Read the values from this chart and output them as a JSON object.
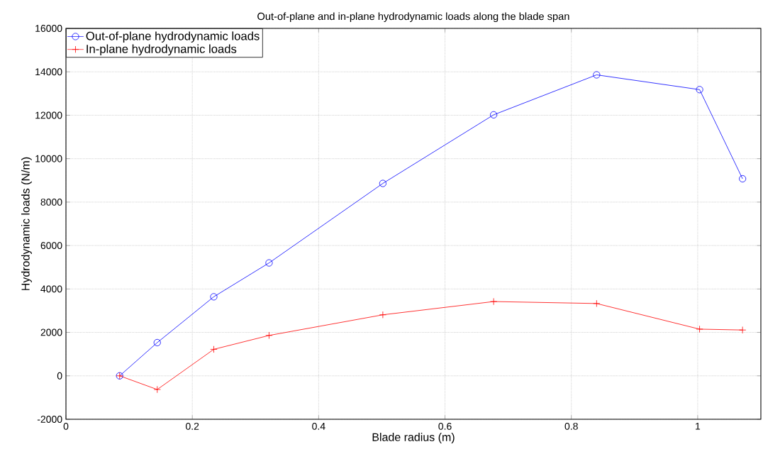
{
  "chart_data": {
    "type": "line",
    "title": "Out-of-plane and in-plane hydrodynamic loads along the blade span",
    "xlabel": "Blade radius (m)",
    "ylabel": "Hydrodynamic loads (N/m)",
    "x": [
      0.085,
      0.1445,
      0.234,
      0.3215,
      0.5016,
      0.677,
      0.84,
      1.003,
      1.071
    ],
    "series": [
      {
        "name": "Out-of-plane hydrodynamic loads",
        "color": "#0000ff",
        "marker": "circle",
        "values": [
          0,
          1530,
          3640,
          5200,
          8860,
          12020,
          13860,
          13180,
          9075
        ]
      },
      {
        "name": "In-plane hydrodynamic loads",
        "color": "#ff0000",
        "marker": "cross",
        "values": [
          0,
          -630,
          1220,
          1860,
          2810,
          3420,
          3330,
          2150,
          2110
        ]
      }
    ],
    "xlim": [
      0,
      1.1
    ],
    "ylim": [
      -2000,
      16000
    ],
    "xticks": [
      0,
      0.2,
      0.4,
      0.6,
      0.8,
      1
    ],
    "yticks": [
      -2000,
      0,
      2000,
      4000,
      6000,
      8000,
      10000,
      12000,
      14000,
      16000
    ],
    "grid": true,
    "legend": "top left",
    "line_style": "solid"
  }
}
